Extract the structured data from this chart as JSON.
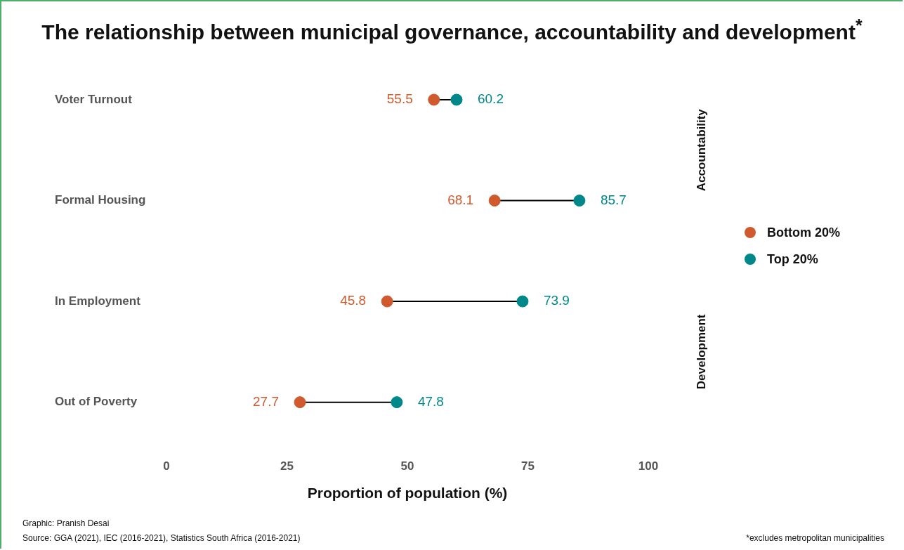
{
  "chart_data": {
    "type": "scatter",
    "orientation": "horizontal",
    "title": "The relationship between municipal governance, accountability and development$^{*}$",
    "xlabel": "Proportion of population (%)",
    "categories": [
      "Voter Turnout",
      "Formal Housing",
      "In Employment",
      "Out of Poverty"
    ],
    "series": [
      {
        "name": "Bottom 20%",
        "color": "#d05a2e",
        "values": [
          55.5,
          68.1,
          45.8,
          27.7
        ]
      },
      {
        "name": "Top 20%",
        "color": "#00878a",
        "values": [
          60.2,
          85.7,
          73.9,
          47.8
        ]
      }
    ],
    "xlim": [
      0,
      100
    ],
    "xticks": [
      0,
      25,
      50,
      75,
      100
    ],
    "grid": false,
    "legend": "right",
    "marker": "circle",
    "data_labels": true,
    "annotations": [
      "Accountability",
      "Development",
      "Graphic: Pranish Desai",
      "Source: GGA (2021), IEC (2016-2021), Statistics South Africa (2016-2021)",
      "*excludes metropolitan municipalities"
    ]
  }
}
